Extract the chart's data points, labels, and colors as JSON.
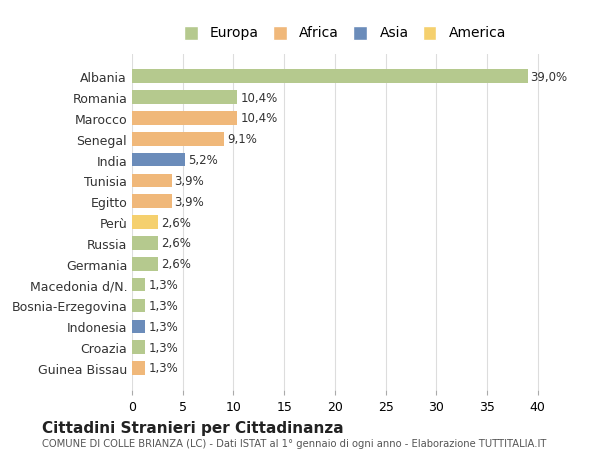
{
  "countries": [
    "Albania",
    "Romania",
    "Marocco",
    "Senegal",
    "India",
    "Tunisia",
    "Egitto",
    "Perù",
    "Russia",
    "Germania",
    "Macedonia d/N.",
    "Bosnia-Erzegovina",
    "Indonesia",
    "Croazia",
    "Guinea Bissau"
  ],
  "values": [
    39.0,
    10.4,
    10.4,
    9.1,
    5.2,
    3.9,
    3.9,
    2.6,
    2.6,
    2.6,
    1.3,
    1.3,
    1.3,
    1.3,
    1.3
  ],
  "labels": [
    "39,0%",
    "10,4%",
    "10,4%",
    "9,1%",
    "5,2%",
    "3,9%",
    "3,9%",
    "2,6%",
    "2,6%",
    "2,6%",
    "1,3%",
    "1,3%",
    "1,3%",
    "1,3%",
    "1,3%"
  ],
  "colors": [
    "#b5c98e",
    "#b5c98e",
    "#f0b87a",
    "#f0b87a",
    "#6b8cba",
    "#f0b87a",
    "#f0b87a",
    "#f5d06e",
    "#b5c98e",
    "#b5c98e",
    "#b5c98e",
    "#b5c98e",
    "#6b8cba",
    "#b5c98e",
    "#f0b87a"
  ],
  "legend_labels": [
    "Europa",
    "Africa",
    "Asia",
    "America"
  ],
  "legend_colors": [
    "#b5c98e",
    "#f0b87a",
    "#6b8cba",
    "#f5d06e"
  ],
  "title": "Cittadini Stranieri per Cittadinanza",
  "subtitle": "COMUNE DI COLLE BRIANZA (LC) - Dati ISTAT al 1° gennaio di ogni anno - Elaborazione TUTTITALIA.IT",
  "xlim": [
    0,
    42
  ],
  "xticks": [
    0,
    5,
    10,
    15,
    20,
    25,
    30,
    35,
    40
  ],
  "background_color": "#ffffff",
  "grid_color": "#dddddd"
}
